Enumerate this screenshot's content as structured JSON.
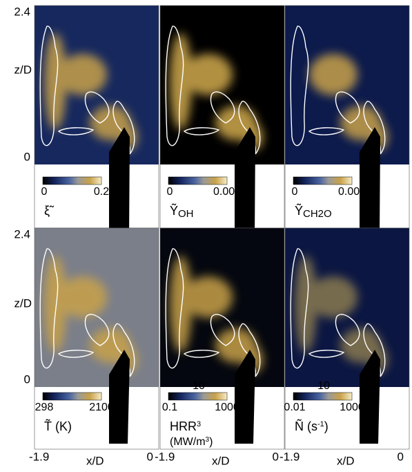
{
  "panels": [
    {
      "ticks": [
        "0",
        "0.2"
      ],
      "label": "ξ̃"
    },
    {
      "ticks": [
        "0",
        "0.005"
      ],
      "label": "Ỹ",
      "sub": "OH"
    },
    {
      "ticks": [
        "0",
        "0.001"
      ],
      "label": "Ỹ",
      "sub": "CH2O"
    },
    {
      "ticks": [
        "298",
        "2100"
      ],
      "label": "T̃  (K)"
    },
    {
      "top_tick": "10",
      "ticks": [
        "0.1",
        "1000"
      ],
      "label": "HRR",
      "label2": "(MW/m",
      "sup": "3",
      "label2_end": ")"
    },
    {
      "top_tick": "10",
      "ticks": [
        "0.01",
        "1000"
      ],
      "label": "Ñ (s",
      "sup": "-1",
      "label_end": ")"
    }
  ],
  "y_axis": {
    "top": "2.4",
    "bottom": "0",
    "label": "z/D"
  },
  "x_axis": {
    "left": "-1.9",
    "right": "0",
    "label": "x/D"
  }
}
